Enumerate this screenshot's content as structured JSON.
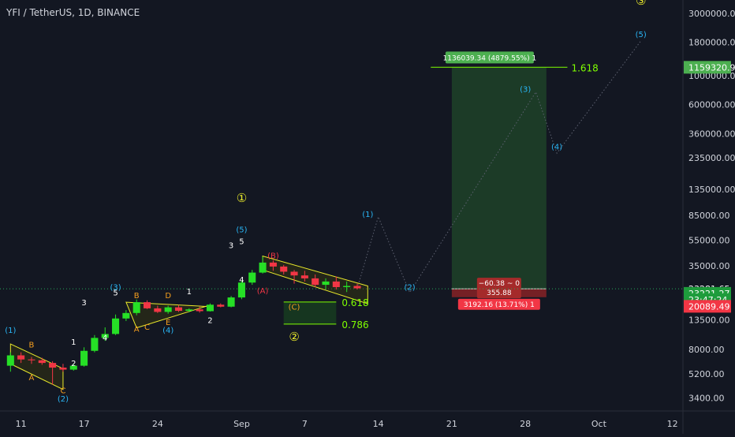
{
  "header": {
    "symbol_title": "YFI / TetherUS, 1D, BINANCE"
  },
  "colors": {
    "background": "#131722",
    "bull": "#26e026",
    "bear": "#f23645",
    "grid_text": "#d1d4dc",
    "wave_orange": "#f59f1e",
    "wave_cyan": "#29b6f6",
    "wave_white": "#ffffff",
    "wave_yellow": "#e9e92b",
    "fib_green": "#7fff00",
    "target_green": "#2e7d32",
    "stop_red": "#c62828",
    "current_price_green": "#1f8a3b"
  },
  "chart_data": {
    "type": "candlestick",
    "title": "YFI / TetherUS, 1D, BINANCE",
    "y_scale": "log",
    "ylim": [
      2700,
      3800000
    ],
    "y_ticks": [
      3400,
      5200,
      8000,
      13500,
      23500,
      35000,
      55000,
      85000,
      135000,
      235000,
      360000,
      600000,
      1000000,
      1800000,
      3000000
    ],
    "y_tick_labels": [
      "3400.00",
      "5200.00",
      "8000.00",
      "13500.00",
      "23500.00",
      "35000.00",
      "55000.00",
      "85000.00",
      "135000.00",
      "235000.00",
      "360000.00",
      "600000.00",
      "1000000.00",
      "1800000.00",
      "3000000.00"
    ],
    "x_axis": {
      "type": "date",
      "range": [
        "2020-08-09",
        "2020-10-13"
      ],
      "tick_dates": [
        "2020-08-11",
        "2020-08-17",
        "2020-08-24",
        "2020-09-01",
        "2020-09-07",
        "2020-09-14",
        "2020-09-21",
        "2020-09-28",
        "2020-10-05",
        "2020-10-12"
      ],
      "tick_labels": [
        "11",
        "17",
        "24",
        "Sep",
        "7",
        "14",
        "21",
        "28",
        "Oct",
        "12"
      ]
    },
    "candles": [
      {
        "date": "2020-08-10",
        "open": 6000,
        "high": 7600,
        "low": 5400,
        "close": 7200
      },
      {
        "date": "2020-08-11",
        "open": 7200,
        "high": 7600,
        "low": 6300,
        "close": 6700
      },
      {
        "date": "2020-08-12",
        "open": 6700,
        "high": 7000,
        "low": 6200,
        "close": 6600
      },
      {
        "date": "2020-08-13",
        "open": 6600,
        "high": 6900,
        "low": 6100,
        "close": 6300
      },
      {
        "date": "2020-08-14",
        "open": 6300,
        "high": 6500,
        "low": 4300,
        "close": 5800
      },
      {
        "date": "2020-08-15",
        "open": 5800,
        "high": 6200,
        "low": 5400,
        "close": 5600
      },
      {
        "date": "2020-08-16",
        "open": 5600,
        "high": 6200,
        "low": 5500,
        "close": 6000
      },
      {
        "date": "2020-08-17",
        "open": 6000,
        "high": 8300,
        "low": 5900,
        "close": 7800
      },
      {
        "date": "2020-08-18",
        "open": 7800,
        "high": 10300,
        "low": 7600,
        "close": 9800
      },
      {
        "date": "2020-08-19",
        "open": 9800,
        "high": 11800,
        "low": 9300,
        "close": 10500
      },
      {
        "date": "2020-08-20",
        "open": 10500,
        "high": 14800,
        "low": 10300,
        "close": 13800
      },
      {
        "date": "2020-08-21",
        "open": 13800,
        "high": 16000,
        "low": 13200,
        "close": 15200
      },
      {
        "date": "2020-08-22",
        "open": 15200,
        "high": 19300,
        "low": 14600,
        "close": 18400
      },
      {
        "date": "2020-08-23",
        "open": 18400,
        "high": 19000,
        "low": 16300,
        "close": 16500
      },
      {
        "date": "2020-08-24",
        "open": 16500,
        "high": 17300,
        "low": 15200,
        "close": 15500
      },
      {
        "date": "2020-08-25",
        "open": 15500,
        "high": 17300,
        "low": 15000,
        "close": 16800
      },
      {
        "date": "2020-08-26",
        "open": 16800,
        "high": 17500,
        "low": 15500,
        "close": 15800
      },
      {
        "date": "2020-08-27",
        "open": 15800,
        "high": 16500,
        "low": 15400,
        "close": 16200
      },
      {
        "date": "2020-08-28",
        "open": 16200,
        "high": 17000,
        "low": 15300,
        "close": 15700
      },
      {
        "date": "2020-08-29",
        "open": 15700,
        "high": 18000,
        "low": 15600,
        "close": 17600
      },
      {
        "date": "2020-08-30",
        "open": 17600,
        "high": 18000,
        "low": 16800,
        "close": 17000
      },
      {
        "date": "2020-08-31",
        "open": 17000,
        "high": 20500,
        "low": 16800,
        "close": 20000
      },
      {
        "date": "2020-09-01",
        "open": 20000,
        "high": 27000,
        "low": 19400,
        "close": 26000
      },
      {
        "date": "2020-09-02",
        "open": 26000,
        "high": 32500,
        "low": 25000,
        "close": 31000
      },
      {
        "date": "2020-09-03",
        "open": 31000,
        "high": 41000,
        "low": 30500,
        "close": 37000
      },
      {
        "date": "2020-09-04",
        "open": 37000,
        "high": 38500,
        "low": 32000,
        "close": 34500
      },
      {
        "date": "2020-09-05",
        "open": 34500,
        "high": 35500,
        "low": 30000,
        "close": 31500
      },
      {
        "date": "2020-09-06",
        "open": 31500,
        "high": 32500,
        "low": 25500,
        "close": 29500
      },
      {
        "date": "2020-09-07",
        "open": 29500,
        "high": 32000,
        "low": 26500,
        "close": 28000
      },
      {
        "date": "2020-09-08",
        "open": 28000,
        "high": 30000,
        "low": 24000,
        "close": 25000
      },
      {
        "date": "2020-09-09",
        "open": 25000,
        "high": 28000,
        "low": 23000,
        "close": 26500
      },
      {
        "date": "2020-09-10",
        "open": 26500,
        "high": 29000,
        "low": 23000,
        "close": 24000
      },
      {
        "date": "2020-09-11",
        "open": 24000,
        "high": 26500,
        "low": 22000,
        "close": 24500
      },
      {
        "date": "2020-09-12",
        "open": 24500,
        "high": 25500,
        "low": 23000,
        "close": 23500
      }
    ],
    "wave_labels": [
      {
        "text": "(1)",
        "date": "2020-08-10",
        "price": 10700,
        "color": "cyan"
      },
      {
        "text": "B",
        "date": "2020-08-12",
        "price": 8300,
        "color": "orange"
      },
      {
        "text": "A",
        "date": "2020-08-12",
        "price": 4650,
        "color": "orange"
      },
      {
        "text": "C",
        "date": "2020-08-15",
        "price": 3700,
        "color": "orange"
      },
      {
        "text": "(2)",
        "date": "2020-08-15",
        "price": 3200,
        "color": "cyan"
      },
      {
        "text": "1",
        "date": "2020-08-16",
        "price": 8700,
        "color": "white"
      },
      {
        "text": "2",
        "date": "2020-08-16",
        "price": 5950,
        "color": "white"
      },
      {
        "text": "3",
        "date": "2020-08-17",
        "price": 17400,
        "color": "white"
      },
      {
        "text": "4",
        "date": "2020-08-19",
        "price": 9400,
        "color": "white"
      },
      {
        "text": "(3)",
        "date": "2020-08-20",
        "price": 22900,
        "color": "cyan"
      },
      {
        "text": "5",
        "date": "2020-08-20",
        "price": 20700,
        "color": "white"
      },
      {
        "text": "B",
        "date": "2020-08-22",
        "price": 19800,
        "color": "orange"
      },
      {
        "text": "A",
        "date": "2020-08-22",
        "price": 10900,
        "color": "orange"
      },
      {
        "text": "C",
        "date": "2020-08-23",
        "price": 11300,
        "color": "orange"
      },
      {
        "text": "D",
        "date": "2020-08-25",
        "price": 19800,
        "color": "orange"
      },
      {
        "text": "E",
        "date": "2020-08-25",
        "price": 12300,
        "color": "orange"
      },
      {
        "text": "(4)",
        "date": "2020-08-25",
        "price": 10700,
        "color": "cyan"
      },
      {
        "text": "1",
        "date": "2020-08-27",
        "price": 21200,
        "color": "white"
      },
      {
        "text": "2",
        "date": "2020-08-29",
        "price": 12700,
        "color": "white"
      },
      {
        "text": "3",
        "date": "2020-08-31",
        "price": 47800,
        "color": "white"
      },
      {
        "text": "(5)",
        "date": "2020-09-01",
        "price": 63000,
        "color": "cyan"
      },
      {
        "text": "5",
        "date": "2020-09-01",
        "price": 51200,
        "color": "white"
      },
      {
        "text": "4",
        "date": "2020-09-01",
        "price": 26000,
        "color": "white"
      },
      {
        "text": "(B)",
        "date": "2020-09-04",
        "price": 39900,
        "color": "red"
      },
      {
        "text": "(A)",
        "date": "2020-09-03",
        "price": 21400,
        "color": "red"
      },
      {
        "text": "(C)",
        "date": "2020-09-06",
        "price": 16100,
        "color": "orange"
      },
      {
        "text": "①",
        "date": "2020-09-01",
        "price": 108000,
        "color": "yellow"
      },
      {
        "text": "②",
        "date": "2020-09-06",
        "price": 9300,
        "color": "yellow"
      },
      {
        "text": "(1)",
        "date": "2020-09-13",
        "price": 83000,
        "color": "cyan"
      },
      {
        "text": "(2)",
        "date": "2020-09-17",
        "price": 22800,
        "color": "cyan"
      },
      {
        "text": "(3)",
        "date": "2020-09-28",
        "price": 750000,
        "color": "cyan"
      },
      {
        "text": "(4)",
        "date": "2020-10-01",
        "price": 272000,
        "color": "cyan"
      },
      {
        "text": "(5)",
        "date": "2020-10-09",
        "price": 1980000,
        "color": "cyan"
      },
      {
        "text": "③",
        "date": "2020-10-09",
        "price": 3500000,
        "color": "yellow"
      }
    ],
    "fib_levels": [
      {
        "label": "0.618",
        "price": 18450
      },
      {
        "label": "0.786",
        "price": 12500
      },
      {
        "label": "1.618",
        "price": 1160000
      }
    ],
    "position": {
      "start_date": "2020-09-21",
      "end_date": "2020-09-30",
      "entry": 23281.65,
      "target": 1159320.99,
      "stop": 20089.49,
      "target_label": "1136039.34 (4879.55%) 1",
      "stop_label": "3192.16 (13.71%) 1",
      "center_line1": "−60.38 ~ 0",
      "center_line2": "355.88"
    },
    "price_tags": [
      {
        "value": "1159320.99",
        "price": 1159320.99,
        "kind": "target"
      },
      {
        "value": "23281.65",
        "price": 23281.65,
        "kind": "dotted"
      },
      {
        "value": "23221.27",
        "price": 21500,
        "kind": "current"
      },
      {
        "value": "23:47:24",
        "price": 19250,
        "kind": "current"
      },
      {
        "value": "20089.49",
        "price": 17100,
        "kind": "stop"
      }
    ]
  }
}
